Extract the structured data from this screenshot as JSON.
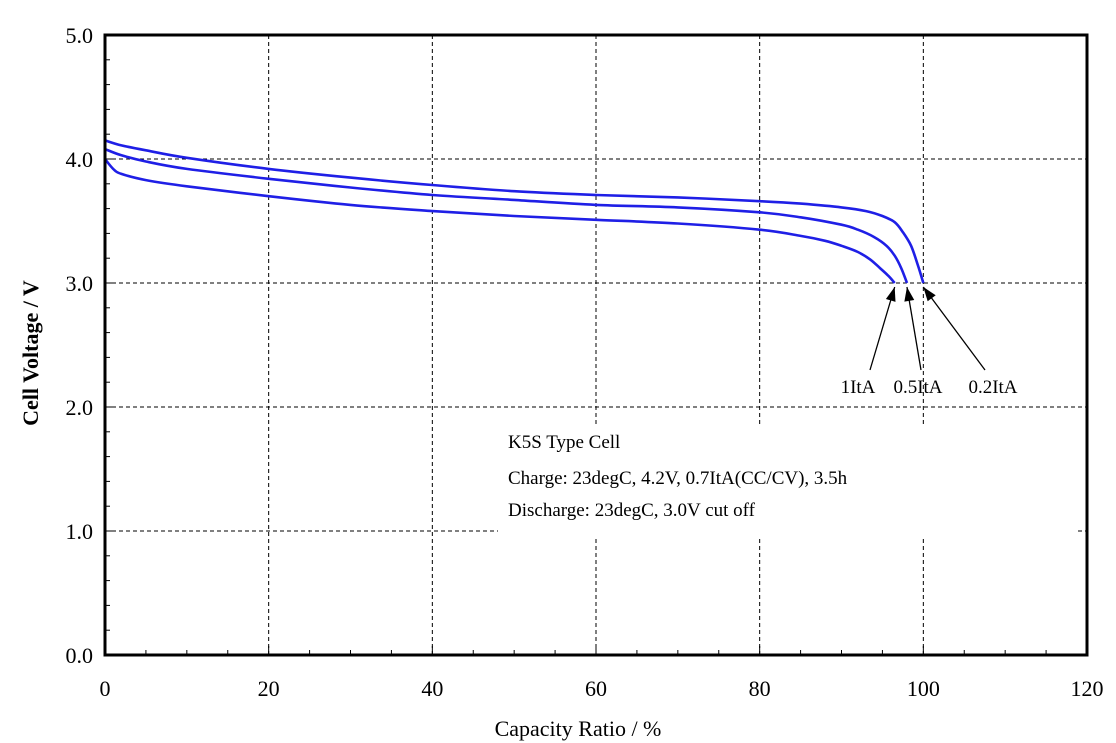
{
  "chart_data": {
    "type": "line",
    "xlabel": "Capacity Ratio / %",
    "ylabel": "Cell Voltage / V",
    "xlim": [
      0,
      120
    ],
    "ylim": [
      0,
      5
    ],
    "xticks": [
      0,
      20,
      40,
      60,
      80,
      100,
      120
    ],
    "xtick_labels": [
      "0",
      "20",
      "40",
      "60",
      "80",
      "100",
      "120"
    ],
    "yticks": [
      0,
      1,
      2,
      3,
      4,
      5
    ],
    "ytick_labels": [
      "0.0",
      "1.0",
      "2.0",
      "3.0",
      "4.0",
      "5.0"
    ],
    "grid": true,
    "series_color": "#1f1fe6",
    "series": [
      {
        "name": "0.2ItA",
        "x": [
          0,
          2,
          5,
          10,
          20,
          30,
          40,
          50,
          60,
          70,
          80,
          85,
          90,
          93,
          95,
          96.5,
          97.5,
          98.5,
          99.3,
          100
        ],
        "y": [
          4.15,
          4.11,
          4.07,
          4.01,
          3.92,
          3.85,
          3.79,
          3.74,
          3.71,
          3.69,
          3.66,
          3.64,
          3.61,
          3.58,
          3.54,
          3.49,
          3.41,
          3.3,
          3.15,
          3.0
        ]
      },
      {
        "name": "0.5ItA",
        "x": [
          0,
          2,
          5,
          10,
          20,
          30,
          40,
          50,
          60,
          70,
          80,
          85,
          90,
          92,
          94,
          95.5,
          96.5,
          97.3,
          98
        ],
        "y": [
          4.08,
          4.03,
          3.98,
          3.92,
          3.84,
          3.77,
          3.71,
          3.67,
          3.63,
          3.61,
          3.57,
          3.53,
          3.47,
          3.43,
          3.37,
          3.3,
          3.22,
          3.12,
          3.0
        ]
      },
      {
        "name": "1ItA",
        "x": [
          0,
          1,
          2,
          5,
          10,
          20,
          30,
          40,
          50,
          60,
          70,
          80,
          85,
          88,
          90,
          92,
          93.5,
          94.7,
          95.7,
          96.5
        ],
        "y": [
          4.0,
          3.92,
          3.88,
          3.83,
          3.78,
          3.7,
          3.63,
          3.58,
          3.54,
          3.51,
          3.48,
          3.43,
          3.38,
          3.34,
          3.3,
          3.25,
          3.19,
          3.12,
          3.06,
          3.0
        ]
      }
    ],
    "annotations": {
      "box": [
        "K5S Type Cell",
        "Charge: 23degC, 4.2V, 0.7ItA(CC/CV), 3.5h",
        "Discharge: 23degC, 3.0V cut off"
      ],
      "curve_labels": [
        "1ItA",
        "0.5ItA",
        "0.2ItA"
      ]
    }
  }
}
